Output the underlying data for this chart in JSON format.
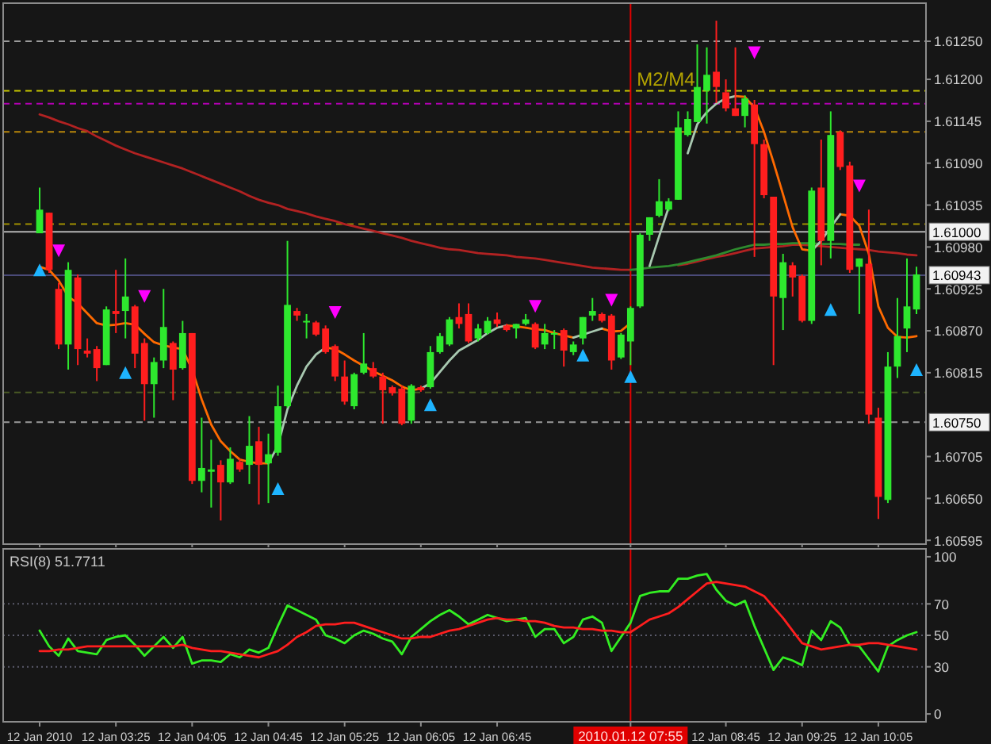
{
  "chart_data": [
    {
      "type": "candlestick",
      "tick_labels": "y",
      "ylim": [
        1.6059,
        1.613
      ],
      "categories": [
        "12 Jan 2010",
        null,
        null,
        null,
        null,
        null,
        null,
        null,
        "12 Jan 03:25",
        null,
        null,
        null,
        null,
        null,
        null,
        null,
        "12 Jan 04:05",
        null,
        null,
        null,
        null,
        null,
        null,
        null,
        "12 Jan 04:45",
        null,
        null,
        null,
        null,
        null,
        null,
        null,
        "12 Jan 05:25",
        null,
        null,
        null,
        null,
        null,
        null,
        null,
        "12 Jan 06:05",
        null,
        null,
        null,
        null,
        null,
        null,
        null,
        "12 Jan 06:45",
        null,
        null,
        null,
        null,
        null,
        null,
        null,
        null,
        null,
        null,
        null,
        null,
        null,
        "2010.01.12 07:55",
        null,
        null,
        null,
        null,
        null,
        null,
        null,
        null,
        null,
        "12 Jan 08:45",
        null,
        null,
        null,
        null,
        null,
        null,
        null,
        "12 Jan 09:25",
        null,
        null,
        null,
        null,
        null,
        null,
        null,
        "12 Jan 10:05",
        null,
        null,
        null,
        null
      ],
      "ohlc": [
        [
          1.60998,
          1.61058,
          1.60998,
          1.61029
        ],
        [
          1.61025,
          1.61025,
          1.60946,
          1.6095
        ],
        [
          1.60925,
          1.60933,
          1.60846,
          1.60852
        ],
        [
          1.60852,
          1.6096,
          1.60819,
          1.6095
        ],
        [
          1.6094,
          1.60944,
          1.60825,
          1.60846
        ],
        [
          1.60844,
          1.6086,
          1.60835,
          1.6084
        ],
        [
          1.60846,
          1.6085,
          1.60804,
          1.60821
        ],
        [
          1.60825,
          1.60902,
          1.60825,
          1.60898
        ],
        [
          1.60896,
          1.6095,
          1.60867,
          1.60892
        ],
        [
          1.60896,
          1.60965,
          1.6086,
          1.60915
        ],
        [
          1.60902,
          1.60904,
          1.60821,
          1.6084
        ],
        [
          1.60854,
          1.6086,
          1.60752,
          1.608
        ],
        [
          1.608,
          1.60835,
          1.60756,
          1.60829
        ],
        [
          1.60831,
          1.60925,
          1.60821,
          1.60875
        ],
        [
          1.60854,
          1.60856,
          1.60779,
          1.60819
        ],
        [
          1.60821,
          1.60883,
          1.60819,
          1.60867
        ],
        [
          1.60867,
          1.60867,
          1.60669,
          1.60673
        ],
        [
          1.60673,
          1.60756,
          1.60658,
          1.6069
        ],
        [
          1.60685,
          1.60727,
          1.60638,
          1.60688
        ],
        [
          1.60694,
          1.607,
          1.60621,
          1.60671
        ],
        [
          1.60671,
          1.60717,
          1.60669,
          1.60702
        ],
        [
          1.60698,
          1.60702,
          1.60685,
          1.60688
        ],
        [
          1.60694,
          1.60758,
          1.60669,
          1.60719
        ],
        [
          1.60725,
          1.60744,
          1.60642,
          1.60694
        ],
        [
          1.60696,
          1.60735,
          1.60644,
          1.60708
        ],
        [
          1.6071,
          1.60798,
          1.60706,
          1.60771
        ],
        [
          1.60771,
          1.60988,
          1.60769,
          1.60904
        ],
        [
          1.60896,
          1.609,
          1.60883,
          1.6089
        ],
        [
          1.60881,
          1.60892,
          1.6086,
          1.60883
        ],
        [
          1.60881,
          1.60883,
          1.60863,
          1.60865
        ],
        [
          1.60873,
          1.60877,
          1.6084,
          1.60842
        ],
        [
          1.6085,
          1.60852,
          1.60804,
          1.6081
        ],
        [
          1.6081,
          1.60831,
          1.60773,
          1.60777
        ],
        [
          1.60771,
          1.60815,
          1.60767,
          1.60813
        ],
        [
          1.60815,
          1.60867,
          1.60813,
          1.60827
        ],
        [
          1.60821,
          1.60829,
          1.60808,
          1.6081
        ],
        [
          1.6081,
          1.60815,
          1.60748,
          1.60792
        ],
        [
          1.60796,
          1.60798,
          1.60785,
          1.60788
        ],
        [
          1.60794,
          1.60798,
          1.60746,
          1.60748
        ],
        [
          1.60752,
          1.608,
          1.60748,
          1.60798
        ],
        [
          1.60796,
          1.60798,
          1.6079,
          1.60792
        ],
        [
          1.60796,
          1.6085,
          1.60794,
          1.60842
        ],
        [
          1.60842,
          1.60867,
          1.6084,
          1.60863
        ],
        [
          1.60852,
          1.60888,
          1.6085,
          1.60885
        ],
        [
          1.60888,
          1.60906,
          1.60873,
          1.60879
        ],
        [
          1.60892,
          1.60906,
          1.60854,
          1.60856
        ],
        [
          1.6086,
          1.60879,
          1.60856,
          1.60873
        ],
        [
          1.60867,
          1.60888,
          1.60865,
          1.60883
        ],
        [
          1.60885,
          1.60894,
          1.60875,
          1.60879
        ],
        [
          1.60877,
          1.60879,
          1.60869,
          1.60871
        ],
        [
          1.60873,
          1.60879,
          1.6086,
          1.60879
        ],
        [
          1.60879,
          1.60892,
          1.60877,
          1.60885
        ],
        [
          1.60879,
          1.60881,
          1.60846,
          1.60848
        ],
        [
          1.60852,
          1.60879,
          1.60846,
          1.60867
        ],
        [
          1.60865,
          1.60871,
          1.60846,
          1.60867
        ],
        [
          1.60871,
          1.60873,
          1.60823,
          1.60844
        ],
        [
          1.60842,
          1.60856,
          1.60838,
          1.60852
        ],
        [
          1.6086,
          1.60888,
          1.60852,
          1.60888
        ],
        [
          1.6089,
          1.60913,
          1.60883,
          1.60896
        ],
        [
          1.60892,
          1.60894,
          1.60881,
          1.60883
        ],
        [
          1.6089,
          1.60892,
          1.60819,
          1.60831
        ],
        [
          1.60835,
          1.60867,
          1.60833,
          1.60865
        ],
        [
          1.60856,
          1.60902,
          1.60825,
          1.609
        ],
        [
          1.60902,
          1.60998,
          1.609,
          1.60996
        ],
        [
          1.60996,
          1.61019,
          1.60988,
          1.61019
        ],
        [
          1.61021,
          1.61069,
          1.61019,
          1.6104
        ],
        [
          1.61029,
          1.61044,
          1.61027,
          1.6104
        ],
        [
          1.61042,
          1.61158,
          1.61042,
          1.61137
        ],
        [
          1.61127,
          1.61158,
          1.61125,
          1.61148
        ],
        [
          1.61144,
          1.61246,
          1.61144,
          1.6119
        ],
        [
          1.61185,
          1.61242,
          1.61142,
          1.61206
        ],
        [
          1.6121,
          1.61277,
          1.61169,
          1.6119
        ],
        [
          1.61183,
          1.612,
          1.61158,
          1.61162
        ],
        [
          1.61162,
          1.61242,
          1.61152,
          1.61152
        ],
        [
          1.61152,
          1.61179,
          1.61137,
          1.61175
        ],
        [
          1.61167,
          1.61173,
          1.60967,
          1.61115
        ],
        [
          1.61115,
          1.61121,
          1.61044,
          1.61048
        ],
        [
          1.61046,
          1.61046,
          1.60825,
          1.60915
        ],
        [
          1.60913,
          1.60971,
          1.60871,
          1.6096
        ],
        [
          1.60956,
          1.6096,
          1.60915,
          1.6094
        ],
        [
          1.60942,
          1.60944,
          1.60881,
          1.60883
        ],
        [
          1.60883,
          1.61058,
          1.60879,
          1.61054
        ],
        [
          1.61058,
          1.61121,
          1.60956,
          1.60988
        ],
        [
          1.60988,
          1.61158,
          1.60965,
          1.61127
        ],
        [
          1.61131,
          1.61133,
          1.61081,
          1.61085
        ],
        [
          1.61087,
          1.61092,
          1.60946,
          1.6095
        ],
        [
          1.60954,
          1.60965,
          1.60892,
          1.60965
        ],
        [
          1.60958,
          1.61029,
          1.60748,
          1.6076
        ],
        [
          1.60756,
          1.60769,
          1.60623,
          1.60652
        ],
        [
          1.60648,
          1.60842,
          1.60644,
          1.60823
        ],
        [
          1.60823,
          1.60913,
          1.60808,
          1.60863
        ],
        [
          1.60873,
          1.60965,
          1.60842,
          1.60902
        ],
        [
          1.60898,
          1.60954,
          1.60892,
          1.60944
        ]
      ],
      "series": [
        {
          "type": "line",
          "color": "#b22222",
          "values": [
            1.61154,
            1.6115,
            1.61145,
            1.61141,
            1.61136,
            1.61132,
            1.61125,
            1.61119,
            1.61113,
            1.61108,
            1.61103,
            1.61099,
            1.61095,
            1.61091,
            1.61087,
            1.61083,
            1.61078,
            1.61073,
            1.61068,
            1.61063,
            1.61058,
            1.61053,
            1.61047,
            1.61042,
            1.61038,
            1.61035,
            1.6103,
            1.61027,
            1.61024,
            1.6102,
            1.61017,
            1.61014,
            1.6101,
            1.61007,
            1.61004,
            1.61001,
            1.60998,
            1.60995,
            1.60992,
            1.60988,
            1.60985,
            1.60982,
            1.60979,
            1.60977,
            1.60976,
            1.60974,
            1.60972,
            1.60971,
            1.6097,
            1.60969,
            1.60967,
            1.60966,
            1.60965,
            1.60963,
            1.60961,
            1.60959,
            1.60957,
            1.60955,
            1.60953,
            1.60952,
            1.60951,
            1.6095,
            1.6095,
            null,
            null,
            null,
            null,
            1.60956,
            1.60958,
            1.60961,
            1.60964,
            1.60967,
            1.60969,
            1.60972,
            1.60975,
            1.60978,
            1.60979,
            1.6098,
            1.60981,
            1.60983,
            1.60983,
            1.60982,
            1.60981,
            1.6098,
            1.60979,
            1.60978,
            1.60977,
            1.60976,
            1.60974,
            1.60973,
            1.60972,
            1.6097,
            1.60969
          ]
        },
        {
          "type": "line",
          "color": "#2e8b2e",
          "values": [
            null,
            null,
            null,
            null,
            null,
            null,
            null,
            null,
            null,
            null,
            null,
            null,
            null,
            null,
            null,
            null,
            null,
            null,
            null,
            null,
            null,
            null,
            null,
            null,
            null,
            null,
            null,
            null,
            null,
            null,
            null,
            null,
            null,
            null,
            null,
            null,
            null,
            null,
            null,
            null,
            null,
            null,
            null,
            null,
            null,
            null,
            null,
            null,
            null,
            null,
            null,
            null,
            null,
            null,
            null,
            null,
            null,
            null,
            null,
            null,
            null,
            null,
            1.6095,
            1.60951,
            1.60953,
            1.60954,
            1.60955,
            1.60957,
            1.6096,
            1.60963,
            1.60966,
            1.60969,
            1.60973,
            1.60977,
            1.6098,
            1.60983,
            1.60983,
            1.60984,
            1.60984,
            1.60985,
            1.60985,
            1.60985,
            1.60984,
            1.60984,
            1.60984,
            1.60983,
            1.60983,
            null,
            null,
            null,
            null,
            null,
            null
          ]
        },
        {
          "type": "line",
          "color": "#ff6a00",
          "values": [
            1.60954,
            1.6095,
            1.60936,
            1.60915,
            1.60906,
            1.60893,
            1.6088,
            1.60877,
            1.60878,
            1.6088,
            1.60878,
            1.60866,
            1.60855,
            1.60851,
            1.60848,
            1.60846,
            1.60819,
            1.6078,
            1.60747,
            1.60725,
            1.60712,
            1.60701,
            1.60698,
            1.60696,
            1.60696,
            null,
            null,
            null,
            null,
            null,
            1.60848,
            1.60846,
            1.60839,
            1.60831,
            1.60824,
            1.60817,
            1.60811,
            1.60805,
            1.60797,
            1.60792,
            1.60794,
            null,
            null,
            null,
            null,
            null,
            null,
            null,
            null,
            1.60877,
            1.60876,
            1.60874,
            1.60872,
            1.60871,
            1.60867,
            1.60864,
            1.60861,
            null,
            null,
            1.60873,
            1.60869,
            1.6087,
            1.6088,
            null,
            null,
            null,
            null,
            null,
            null,
            null,
            null,
            null,
            null,
            1.61178,
            1.61177,
            1.61163,
            1.61131,
            1.61091,
            1.61049,
            1.61006,
            1.60977,
            1.60975,
            null,
            null,
            1.61023,
            1.61021,
            1.61008,
            1.60971,
            1.60902,
            1.60874,
            1.60862,
            1.60861,
            1.60863
          ]
        },
        {
          "type": "line",
          "color": "#a8c8b0",
          "values": [
            null,
            null,
            null,
            null,
            null,
            null,
            null,
            null,
            null,
            null,
            null,
            null,
            null,
            null,
            null,
            null,
            null,
            null,
            null,
            null,
            null,
            null,
            null,
            null,
            1.60696,
            1.60719,
            1.60767,
            1.60798,
            1.60823,
            1.60839,
            1.60848,
            null,
            null,
            null,
            null,
            null,
            null,
            null,
            null,
            null,
            1.60794,
            1.60801,
            1.60816,
            1.60831,
            1.60844,
            1.60851,
            1.60858,
            1.60867,
            1.60874,
            1.60877,
            null,
            null,
            null,
            null,
            null,
            null,
            1.60861,
            1.60865,
            1.60869,
            1.60873,
            null,
            null,
            null,
            null,
            1.60955,
            1.60994,
            1.61032,
            null,
            1.61103,
            1.61141,
            1.61157,
            1.61168,
            1.61175,
            1.61178,
            null,
            null,
            null,
            null,
            null,
            null,
            null,
            1.60975,
            1.60988,
            1.61006,
            1.61023,
            null,
            null,
            null,
            null,
            null,
            null,
            null,
            null
          ]
        },
        {
          "type": "scatter",
          "marker": "triangle",
          "color": "#ff00ff",
          "values": [
            null,
            null,
            1.60975,
            null,
            null,
            null,
            null,
            null,
            null,
            null,
            null,
            1.60915,
            null,
            null,
            null,
            null,
            null,
            null,
            null,
            null,
            null,
            null,
            null,
            null,
            null,
            null,
            null,
            null,
            null,
            null,
            null,
            1.60894,
            null,
            null,
            null,
            null,
            null,
            null,
            null,
            null,
            null,
            null,
            null,
            null,
            null,
            null,
            null,
            null,
            null,
            null,
            null,
            null,
            1.60902,
            null,
            null,
            null,
            null,
            null,
            null,
            null,
            1.6091,
            null,
            null,
            null,
            null,
            null,
            null,
            null,
            null,
            null,
            null,
            null,
            null,
            null,
            null,
            1.61235,
            null,
            null,
            null,
            null,
            null,
            null,
            null,
            null,
            null,
            null,
            1.6106,
            null,
            null,
            null,
            null,
            null,
            null
          ]
        },
        {
          "type": "scatter",
          "marker": "triangle",
          "color": "#1eb4ff",
          "values": [
            1.6095,
            null,
            null,
            null,
            null,
            null,
            null,
            null,
            null,
            1.60815,
            null,
            null,
            null,
            null,
            null,
            null,
            null,
            null,
            null,
            null,
            null,
            null,
            null,
            null,
            null,
            1.60663,
            null,
            null,
            null,
            null,
            null,
            null,
            null,
            null,
            null,
            null,
            null,
            null,
            null,
            null,
            null,
            1.60773,
            null,
            null,
            null,
            null,
            null,
            null,
            null,
            null,
            null,
            null,
            null,
            null,
            null,
            null,
            null,
            1.60838,
            null,
            null,
            null,
            null,
            1.6081,
            null,
            null,
            null,
            null,
            null,
            null,
            null,
            null,
            null,
            null,
            null,
            null,
            null,
            null,
            null,
            null,
            null,
            null,
            null,
            null,
            1.60898,
            null,
            null,
            null,
            null,
            null,
            null,
            null,
            null,
            1.60819
          ]
        }
      ],
      "yticks": [
        {
          "value": 1.6125,
          "label": "1.61250"
        },
        {
          "value": 1.612,
          "label": "1.61200"
        },
        {
          "value": 1.61145,
          "label": "1.61145"
        },
        {
          "value": 1.6109,
          "label": "1.61090"
        },
        {
          "value": 1.61035,
          "label": "1.61035"
        },
        {
          "value": 1.6098,
          "label": "1.60980"
        },
        {
          "value": 1.60925,
          "label": "1.60925"
        },
        {
          "value": 1.6087,
          "label": "1.60870"
        },
        {
          "value": 1.60815,
          "label": "1.60815"
        },
        {
          "value": 1.60705,
          "label": "1.60705"
        },
        {
          "value": 1.6065,
          "label": "1.60650"
        },
        {
          "value": 1.60595,
          "label": "1.60595"
        }
      ],
      "ref_lines": [
        {
          "axis": "y",
          "value": 1.6125,
          "color": "#9a9a9a",
          "line_style": "dashed"
        },
        {
          "axis": "y",
          "value": 1.61185,
          "color": "#c8c800",
          "line_style": "dashed"
        },
        {
          "axis": "y",
          "value": 1.61168,
          "color": "#b000b0",
          "line_style": "dashed"
        },
        {
          "axis": "y",
          "value": 1.61131,
          "color": "#b8860b",
          "line_style": "dashed"
        },
        {
          "axis": "y",
          "value": 1.6101,
          "color": "#a09000",
          "line_style": "dashed"
        },
        {
          "axis": "y",
          "value": 1.61,
          "label": "1.61000",
          "color": "#b4b4b4",
          "line_style": "solid"
        },
        {
          "axis": "y",
          "value": 1.60943,
          "label": "1.60943",
          "color": "#4a4a78",
          "line_style": "solid"
        },
        {
          "axis": "y",
          "value": 1.60789,
          "color": "#4a5a24",
          "line_style": "dashed"
        },
        {
          "axis": "y",
          "value": 1.6075,
          "label": "1.60750",
          "color": "#9a9a9a",
          "line_style": "dashed"
        },
        {
          "axis": "x",
          "value": "2010.01.12 07:55",
          "color": "#e00000",
          "line_style": "solid"
        }
      ],
      "annotations": [
        {
          "text": "M2/M4",
          "y": 1.61185
        }
      ]
    },
    {
      "type": "line",
      "title": "RSI(8) 51.7711",
      "ylim": [
        -5,
        105
      ],
      "yticks": [
        100,
        70,
        50,
        30,
        0
      ],
      "categories": [
        "12 Jan 2010",
        null,
        null,
        null,
        null,
        null,
        null,
        null,
        "12 Jan 03:25",
        null,
        null,
        null,
        null,
        null,
        null,
        null,
        "12 Jan 04:05",
        null,
        null,
        null,
        null,
        null,
        null,
        null,
        "12 Jan 04:45",
        null,
        null,
        null,
        null,
        null,
        null,
        null,
        "12 Jan 05:25",
        null,
        null,
        null,
        null,
        null,
        null,
        null,
        "12 Jan 06:05",
        null,
        null,
        null,
        null,
        null,
        null,
        null,
        "12 Jan 06:45",
        null,
        null,
        null,
        null,
        null,
        null,
        null,
        null,
        null,
        null,
        null,
        null,
        null,
        "2010.01.12 07:55",
        null,
        null,
        null,
        null,
        null,
        null,
        null,
        null,
        null,
        "12 Jan 08:45",
        null,
        null,
        null,
        null,
        null,
        null,
        null,
        "12 Jan 09:25",
        null,
        null,
        null,
        null,
        null,
        null,
        null,
        "12 Jan 10:05",
        null,
        null,
        null,
        null
      ],
      "series": [
        {
          "color": "#33ee22",
          "values": [
            53,
            43,
            37,
            48,
            40,
            39,
            38,
            47,
            49,
            50,
            44,
            37,
            43,
            49,
            42,
            49,
            32,
            34,
            34,
            33,
            38,
            36,
            41,
            39,
            42,
            56,
            69,
            66,
            63,
            60,
            50,
            48,
            45,
            50,
            53,
            51,
            48,
            46,
            38,
            49,
            54,
            59,
            63,
            66,
            62,
            57,
            60,
            63,
            61,
            59,
            60,
            61,
            49,
            54,
            54,
            45,
            49,
            60,
            62,
            58,
            40,
            49,
            58,
            75,
            77,
            78,
            78,
            86,
            86,
            88,
            89,
            79,
            72,
            69,
            72,
            56,
            42,
            28,
            36,
            34,
            31,
            53,
            47,
            59,
            55,
            44,
            43,
            35,
            27,
            43,
            47,
            50,
            52
          ]
        },
        {
          "color": "#ff1e1e",
          "values": [
            40,
            40,
            41,
            41,
            42,
            43,
            43,
            43,
            43,
            43,
            43,
            43,
            43,
            43,
            43,
            44,
            42,
            41,
            40,
            40,
            39,
            38,
            37,
            36,
            38,
            40,
            44,
            49,
            52,
            56,
            57,
            57,
            58,
            58,
            56,
            54,
            52,
            50,
            48,
            48,
            49,
            49,
            51,
            53,
            54,
            56,
            58,
            60,
            61,
            60,
            60,
            59,
            59,
            58,
            56,
            55,
            55,
            54,
            54,
            53,
            53,
            52,
            52,
            56,
            60,
            62,
            64,
            68,
            73,
            78,
            83,
            84,
            83,
            82,
            81,
            78,
            75,
            68,
            61,
            53,
            45,
            43,
            41,
            42,
            43,
            44,
            44,
            45,
            45,
            44,
            43,
            42,
            41
          ]
        }
      ],
      "ref_lines": [
        {
          "axis": "y",
          "value": 70,
          "color": "#5a5a6a",
          "line_style": "dotted"
        },
        {
          "axis": "y",
          "value": 50,
          "color": "#5a5a6a",
          "line_style": "dotted"
        },
        {
          "axis": "y",
          "value": 30,
          "color": "#5a5a6a",
          "line_style": "dotted"
        },
        {
          "axis": "x",
          "value": "2010.01.12 07:55",
          "color": "#e00000",
          "line_style": "solid"
        }
      ]
    }
  ]
}
